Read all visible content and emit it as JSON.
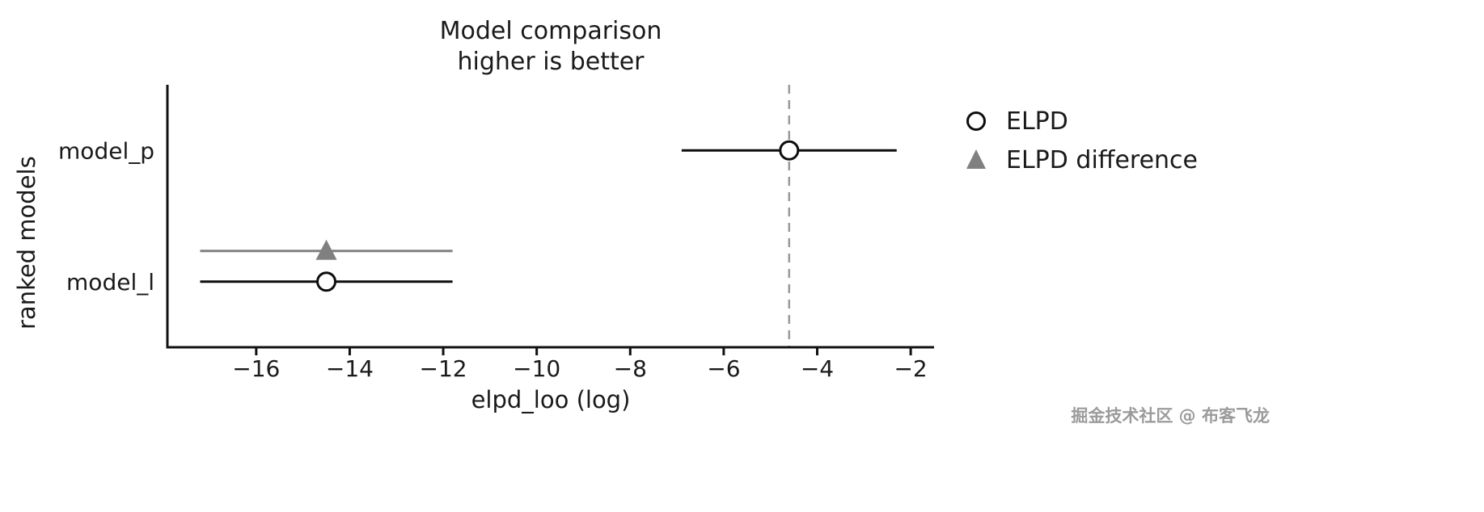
{
  "page": {
    "title_line1": "Model comparison",
    "title_line2": "higher is better",
    "xlabel": "elpd_loo (log)",
    "ylabel": "ranked models",
    "watermark": "掘金技术社区 @ 布客飞龙"
  },
  "legend": {
    "items": [
      {
        "label": "ELPD",
        "marker": "open-circle"
      },
      {
        "label": "ELPD difference",
        "marker": "filled-triangle"
      }
    ]
  },
  "colors": {
    "line_black": "#0d0d0d",
    "diff_gray": "#808080",
    "ref_dashed_gray": "#9a9a9a",
    "text": "#1a1a1a",
    "marker_fill": "#ffffff"
  },
  "chart_data": {
    "type": "scatter",
    "title": "Model comparison / higher is better",
    "xlabel": "elpd_loo (log)",
    "ylabel": "ranked models",
    "xlim": [
      -17.9,
      -1.5
    ],
    "xticks": [
      -16,
      -14,
      -12,
      -10,
      -8,
      -6,
      -4,
      -2
    ],
    "yticklabels": [
      "model_p",
      "model_l"
    ],
    "grid": false,
    "legend_position": "outside upper right",
    "legend": [
      "ELPD",
      "ELPD difference"
    ],
    "reference_line_x": -4.6,
    "models": [
      {
        "name": "model_p",
        "rank": 0,
        "elpd_loo": -4.6,
        "ci": [
          -6.9,
          -2.3
        ]
      },
      {
        "name": "model_l",
        "rank": 1,
        "elpd_loo": -14.5,
        "ci": [
          -17.2,
          -11.8
        ],
        "elpd_diff": {
          "value": -14.5,
          "ci": [
            -17.2,
            -11.8
          ]
        }
      }
    ]
  }
}
